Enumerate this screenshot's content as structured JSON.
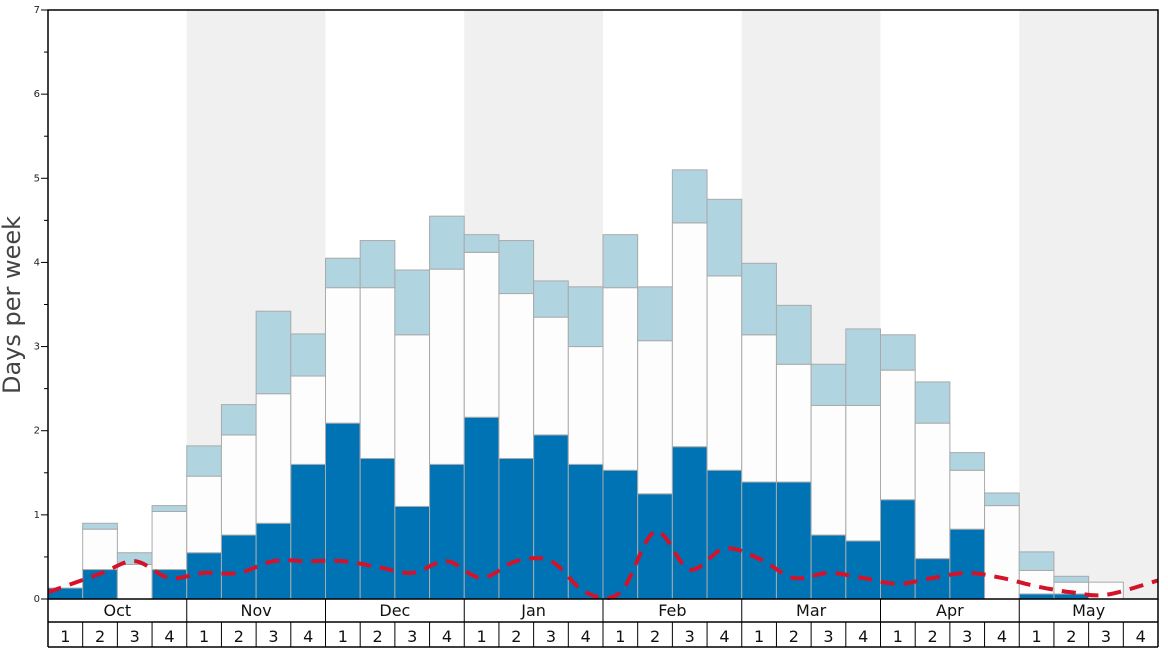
{
  "chart_data": {
    "type": "bar",
    "ylabel": "Days per week",
    "xlabel": "",
    "ylim": [
      0,
      7
    ],
    "yticks": [
      "0",
      "1",
      "2",
      "3",
      "4",
      "5",
      "6",
      "7"
    ],
    "months": [
      "Oct",
      "Nov",
      "Dec",
      "Jan",
      "Feb",
      "Mar",
      "Apr",
      "May"
    ],
    "week_labels": [
      "1",
      "2",
      "3",
      "4"
    ],
    "stacked": true,
    "colors": {
      "bottom": "#0073b5",
      "middle": "#fdfdfd",
      "top": "#b0d4e0",
      "line": "#d3132a",
      "band": "#f0f0f0",
      "bar_edge": "#aaaaaa"
    },
    "series": [
      {
        "values": [
          0.13,
          0.35,
          0.0,
          0.35,
          0.55,
          0.76,
          0.9,
          1.6,
          2.09,
          1.67,
          1.1,
          1.6,
          2.16,
          1.67,
          1.95,
          1.6,
          1.53,
          1.25,
          1.81,
          1.53,
          1.39,
          1.39,
          0.76,
          0.69,
          1.18,
          0.48,
          0.83,
          0.0,
          0.06,
          0.06,
          0.0,
          0.0
        ]
      },
      {
        "values": [
          0.0,
          0.48,
          0.41,
          0.69,
          0.91,
          1.19,
          1.54,
          1.05,
          1.61,
          2.03,
          2.04,
          2.32,
          1.96,
          1.96,
          1.4,
          1.4,
          2.17,
          1.82,
          2.66,
          2.31,
          1.75,
          1.4,
          1.54,
          1.61,
          1.54,
          1.61,
          0.7,
          1.11,
          0.28,
          0.14,
          0.2,
          0.0
        ]
      },
      {
        "values": [
          0.0,
          0.07,
          0.14,
          0.07,
          0.36,
          0.36,
          0.98,
          0.5,
          0.35,
          0.56,
          0.77,
          0.63,
          0.21,
          0.63,
          0.43,
          0.71,
          0.63,
          0.64,
          0.63,
          0.91,
          0.85,
          0.7,
          0.49,
          0.91,
          0.42,
          0.49,
          0.21,
          0.15,
          0.22,
          0.07,
          0.0,
          0.0
        ]
      }
    ],
    "line": {
      "style": "dashed",
      "values": [
        0.08,
        0.3,
        0.45,
        0.25,
        0.31,
        0.31,
        0.45,
        0.45,
        0.45,
        0.38,
        0.31,
        0.45,
        0.25,
        0.45,
        0.45,
        0.08,
        0.08,
        0.8,
        0.35,
        0.6,
        0.48,
        0.25,
        0.31,
        0.25,
        0.18,
        0.25,
        0.31,
        0.25,
        0.15,
        0.08,
        0.05,
        0.22
      ]
    }
  }
}
